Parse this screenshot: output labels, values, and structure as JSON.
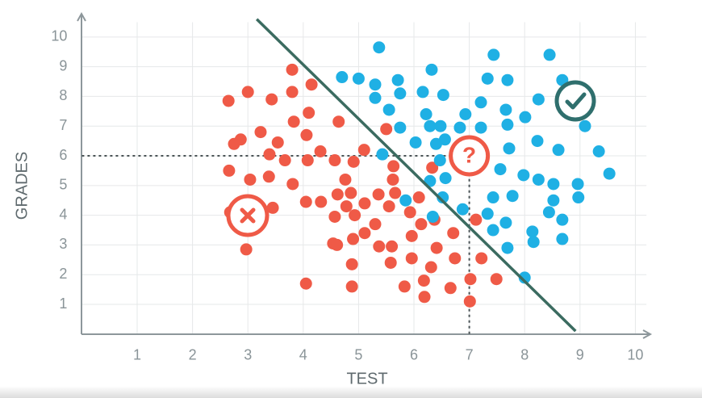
{
  "chart_data": {
    "type": "scatter",
    "xlabel": "TEST",
    "ylabel": "GRADES",
    "xlim": [
      0,
      10.3
    ],
    "ylim": [
      0,
      10.8
    ],
    "xticks": [
      1,
      2,
      3,
      4,
      5,
      6,
      7,
      8,
      9,
      10
    ],
    "yticks": [
      1,
      2,
      3,
      4,
      5,
      6,
      7,
      8,
      9,
      10
    ],
    "grid": true,
    "series": [
      {
        "color": "#ef5a47",
        "x": [
          2.65,
          3.0,
          3.43,
          3.8,
          3.8,
          4.15,
          4.1,
          3.83,
          4.06,
          4.64,
          2.87,
          2.75,
          3.23,
          3.54,
          3.39,
          3.67,
          4.08,
          4.31,
          4.57,
          5.1,
          4.91,
          5.5,
          2.66,
          3.04,
          3.38,
          3.81,
          4.76,
          5.63,
          5.62,
          5.36,
          4.62,
          4.86,
          5.11,
          4.05,
          4.32,
          3.45,
          2.68,
          4.78,
          4.57,
          4.93,
          5.55,
          5.66,
          6.09,
          5.93,
          6.13,
          5.3,
          4.54,
          4.61,
          4.9,
          5.11,
          5.37,
          5.6,
          5.96,
          6.37,
          6.71,
          7.12,
          6.41,
          5.96,
          5.58,
          4.88,
          2.97,
          6.31,
          6.74,
          7.22,
          6.18,
          5.83,
          6.66,
          7.02,
          7.49,
          6.19,
          7.01,
          4.05,
          4.88,
          6.33
        ],
        "values": [
          7.85,
          8.15,
          7.9,
          8.9,
          8.15,
          8.4,
          7.45,
          7.15,
          6.7,
          7.15,
          6.55,
          6.4,
          6.8,
          6.45,
          6.05,
          5.85,
          5.85,
          6.15,
          5.85,
          6.2,
          5.8,
          6.9,
          5.5,
          5.2,
          5.3,
          5.05,
          5.2,
          5.65,
          5.2,
          4.7,
          4.7,
          4.75,
          4.4,
          4.45,
          4.45,
          4.25,
          4.1,
          4.3,
          3.95,
          4.0,
          4.3,
          4.75,
          4.6,
          4.1,
          3.7,
          3.7,
          3.05,
          3.0,
          3.2,
          3.4,
          2.95,
          2.95,
          3.3,
          3.85,
          3.4,
          3.85,
          2.9,
          2.55,
          2.4,
          2.35,
          2.85,
          2.25,
          2.55,
          2.55,
          1.8,
          1.6,
          1.55,
          1.85,
          1.85,
          1.25,
          1.1,
          1.7,
          1.6,
          5.6
        ]
      },
      {
        "color": "#1fb0e4",
        "x": [
          5.37,
          7.44,
          8.45,
          4.7,
          5.0,
          5.3,
          5.71,
          6.32,
          7.33,
          7.69,
          8.68,
          5.3,
          5.75,
          6.16,
          6.53,
          7.21,
          5.55,
          6.22,
          6.93,
          7.66,
          8.01,
          8.25,
          9.09,
          5.75,
          6.29,
          6.48,
          6.83,
          7.21,
          7.69,
          6.03,
          6.4,
          6.56,
          8.23,
          5.43,
          6.47,
          7.72,
          8.61,
          9.34,
          6.29,
          6.57,
          7.56,
          7.98,
          8.25,
          8.52,
          8.96,
          9.53,
          5.85,
          6.52,
          7.43,
          7.78,
          8.52,
          8.97,
          6.34,
          6.88,
          7.33,
          8.44,
          8.68,
          7.66,
          7.43,
          8.14,
          8.16,
          7.69,
          8.68,
          8.0
        ],
        "values": [
          9.65,
          9.4,
          9.4,
          8.65,
          8.6,
          8.4,
          8.55,
          8.9,
          8.6,
          8.55,
          8.55,
          7.95,
          8.1,
          8.15,
          8.05,
          7.8,
          7.55,
          7.4,
          7.4,
          7.55,
          7.3,
          7.9,
          7.0,
          6.95,
          7.0,
          7.0,
          6.95,
          6.95,
          7.05,
          6.45,
          6.4,
          6.55,
          6.5,
          6.05,
          5.85,
          6.25,
          6.2,
          6.15,
          5.15,
          5.25,
          5.55,
          5.35,
          5.2,
          5.05,
          5.05,
          5.4,
          4.5,
          4.6,
          4.6,
          4.65,
          4.5,
          4.6,
          3.95,
          4.2,
          4.05,
          4.1,
          3.85,
          3.75,
          3.5,
          3.45,
          3.1,
          2.9,
          3.2,
          1.9
        ]
      }
    ],
    "boundary": {
      "color": "#3b6b60",
      "x": [
        3.16,
        8.92
      ],
      "y": [
        10.6,
        0.1
      ]
    },
    "query_point": {
      "x": 7,
      "y": 6,
      "label": "?",
      "color": "#ef5a47"
    }
  }
}
